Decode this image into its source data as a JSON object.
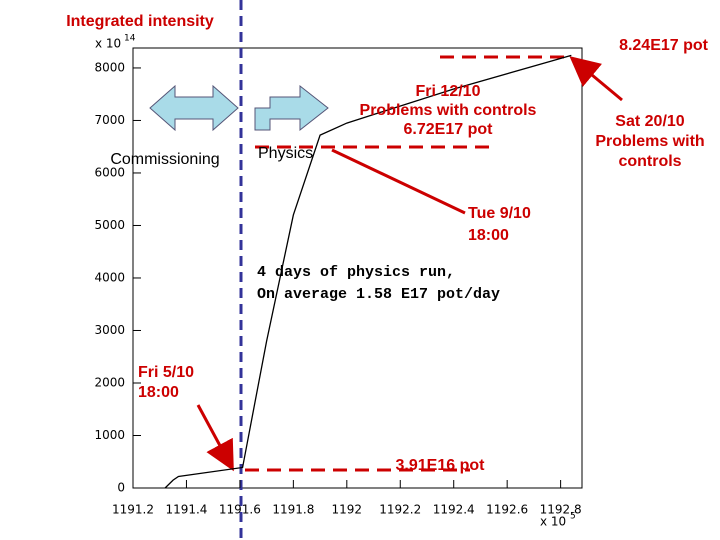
{
  "chart_data": {
    "type": "line",
    "title": "Integrated intensity",
    "y_multiplier": {
      "base": "x 10",
      "exponent": "14"
    },
    "x_multiplier": {
      "base": "x 10",
      "exponent": "5"
    },
    "x": [
      1191.32,
      1191.35,
      1191.37,
      1191.61,
      1191.7,
      1191.8,
      1191.9,
      1192.0,
      1192.4,
      1192.84
    ],
    "series": [
      {
        "name": "Integrated intensity",
        "color": "#000000",
        "values": [
          0,
          150,
          220,
          391,
          2800,
          5200,
          6720,
          6950,
          7600,
          8240
        ]
      }
    ],
    "xlim": [
      1191.2,
      1192.88
    ],
    "ylim": [
      0,
      8380
    ],
    "xticks": [
      {
        "value": 1191.2,
        "label": "1191.2"
      },
      {
        "value": 1191.4,
        "label": "1191.4"
      },
      {
        "value": 1191.6,
        "label": "1191.6"
      },
      {
        "value": 1191.8,
        "label": "1191.8"
      },
      1192,
      {
        "value": 1192.2,
        "label": "1192.2"
      },
      {
        "value": 1192.4,
        "label": "1192.4"
      },
      {
        "value": 1192.6,
        "label": "1192.6"
      },
      {
        "value": 1192.8,
        "label": "1192.8"
      }
    ],
    "yticks": [
      0,
      1000,
      2000,
      3000,
      4000,
      5000,
      6000,
      7000,
      8000
    ],
    "annotations": [
      {
        "lines": [
          "8.24E17 pot"
        ]
      },
      {
        "lines": [
          "Fri 12/10",
          "Problems with controls",
          "6.72E17 pot"
        ]
      },
      {
        "lines": [
          "Sat 20/10",
          "Problems with",
          "controls"
        ]
      },
      {
        "lines": [
          "Commissioning"
        ]
      },
      {
        "lines": [
          "Physics"
        ]
      },
      {
        "lines": [
          "Tue 9/10",
          "18:00"
        ]
      },
      {
        "lines": [
          "4 days of physics run,",
          "On average 1.58 E17 pot/day"
        ]
      },
      {
        "lines": [
          "Fri 5/10",
          "18:00"
        ]
      },
      {
        "lines": [
          "3.91E16 pot"
        ]
      }
    ]
  }
}
